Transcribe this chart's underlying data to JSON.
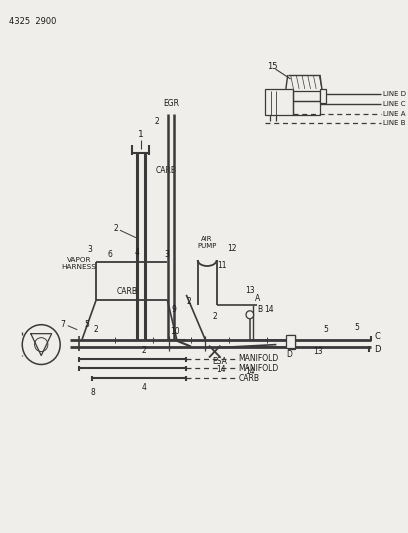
{
  "bg_color": "#f0eeea",
  "line_color": "#3a3a3a",
  "text_color": "#1a1a1a",
  "figsize": [
    4.08,
    5.33
  ],
  "dpi": 100,
  "part_number": "4325  2900",
  "egr": "EGR",
  "carb_top": "CARB",
  "air_pump": "AIR\nPUMP",
  "vapor_harness": "VAPOR\nHARNESS",
  "carb_mid": "CARB",
  "manifold1": "MANIFOLD",
  "manifold2": "MANIFOLD",
  "carb_bot": "CARB",
  "line_d": "LINE D",
  "line_c": "LINE C",
  "line_a": "LINE A",
  "line_b": "LINE B",
  "esa": "ESA"
}
